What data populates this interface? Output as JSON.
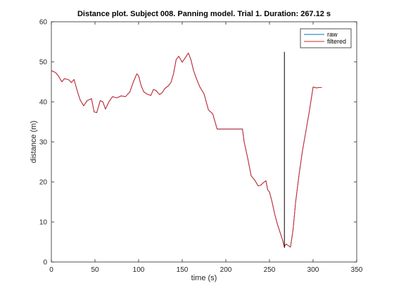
{
  "chart_data": {
    "type": "line",
    "title": "Distance plot. Subject 008. Panning model. Trial 1. Duration: 267.12 s",
    "xlabel": "time (s)",
    "ylabel": "distance (m)",
    "xlim": [
      0,
      350
    ],
    "ylim": [
      0,
      60
    ],
    "xticks": [
      "0",
      "50",
      "100",
      "150",
      "200",
      "250",
      "300",
      "350"
    ],
    "yticks": [
      "0",
      "10",
      "20",
      "30",
      "40",
      "50",
      "60"
    ],
    "grid": false,
    "legend_position": "top-right",
    "series": [
      {
        "name": "raw",
        "color": "#0072bd",
        "x": [
          0,
          5,
          8,
          12,
          15,
          20,
          23,
          26,
          30,
          33,
          37,
          41,
          46,
          49,
          52,
          56,
          59,
          62,
          66,
          70,
          75,
          80,
          85,
          90,
          94,
          98,
          100,
          103,
          106,
          110,
          114,
          117,
          120,
          124,
          127,
          130,
          134,
          137,
          140,
          143,
          146,
          150,
          154,
          157,
          160,
          163,
          166,
          170,
          175,
          180,
          185,
          190,
          200,
          210,
          219,
          221,
          225,
          229,
          233,
          237,
          240,
          243,
          246,
          248,
          250,
          253,
          256,
          259,
          262,
          265,
          267,
          269,
          271,
          274,
          277,
          280,
          284,
          288,
          292,
          296,
          300,
          304,
          307,
          310
        ],
        "y": [
          47.8,
          47.3,
          46.5,
          45.0,
          45.8,
          45.5,
          44.8,
          45.6,
          42.5,
          40.5,
          39.0,
          40.3,
          40.8,
          37.5,
          37.3,
          40.3,
          40.0,
          38.2,
          40.0,
          41.3,
          41.0,
          41.5,
          41.3,
          42.5,
          45.0,
          47.0,
          46.5,
          44.0,
          42.5,
          41.9,
          41.6,
          43.1,
          42.8,
          41.8,
          42.3,
          43.3,
          44.0,
          44.8,
          47.0,
          50.5,
          51.4,
          49.9,
          51.2,
          52.2,
          50.5,
          47.8,
          46.0,
          43.8,
          42.0,
          38.0,
          37.0,
          33.2,
          33.2,
          33.2,
          33.2,
          30.0,
          26.0,
          21.5,
          20.5,
          19.0,
          19.2,
          19.8,
          20.3,
          18.0,
          17.5,
          15.0,
          12.0,
          9.5,
          7.5,
          5.5,
          3.8,
          4.5,
          4.2,
          3.7,
          8.0,
          15.0,
          22.0,
          28.0,
          33.0,
          38.0,
          43.7,
          43.5,
          43.6,
          43.6
        ]
      },
      {
        "name": "filtered",
        "color": "#d62728",
        "x": [
          0,
          5,
          8,
          12,
          15,
          20,
          23,
          26,
          30,
          33,
          37,
          41,
          46,
          49,
          52,
          56,
          59,
          62,
          66,
          70,
          75,
          80,
          85,
          90,
          94,
          98,
          100,
          103,
          106,
          110,
          114,
          117,
          120,
          124,
          127,
          130,
          134,
          137,
          140,
          143,
          146,
          150,
          154,
          157,
          160,
          163,
          166,
          170,
          175,
          180,
          185,
          190,
          200,
          210,
          219,
          221,
          225,
          229,
          233,
          237,
          240,
          243,
          246,
          248,
          250,
          253,
          256,
          259,
          262,
          265,
          267,
          269,
          271,
          274,
          277,
          280,
          284,
          288,
          292,
          296,
          300,
          304,
          307,
          310
        ],
        "y": [
          47.8,
          47.3,
          46.5,
          45.0,
          45.8,
          45.5,
          44.8,
          45.6,
          42.5,
          40.5,
          39.0,
          40.3,
          40.8,
          37.5,
          37.3,
          40.3,
          40.0,
          38.2,
          40.0,
          41.3,
          41.0,
          41.5,
          41.3,
          42.5,
          45.0,
          47.0,
          46.5,
          44.0,
          42.5,
          41.9,
          41.6,
          43.1,
          42.8,
          41.8,
          42.3,
          43.3,
          44.0,
          44.8,
          47.0,
          50.5,
          51.4,
          49.9,
          51.2,
          52.2,
          50.5,
          47.8,
          46.0,
          43.8,
          42.0,
          38.0,
          37.0,
          33.2,
          33.2,
          33.2,
          33.2,
          30.0,
          26.0,
          21.5,
          20.5,
          19.0,
          19.2,
          19.8,
          20.3,
          18.0,
          17.5,
          15.0,
          12.0,
          9.5,
          7.5,
          5.5,
          3.8,
          4.5,
          4.2,
          3.7,
          8.0,
          15.0,
          22.0,
          28.0,
          33.0,
          38.0,
          43.7,
          43.5,
          43.6,
          43.6
        ]
      }
    ],
    "annotations": [
      {
        "type": "vertical-line",
        "x": 267.12,
        "y_range": [
          3.5,
          52.5
        ],
        "color": "#000000"
      }
    ]
  }
}
